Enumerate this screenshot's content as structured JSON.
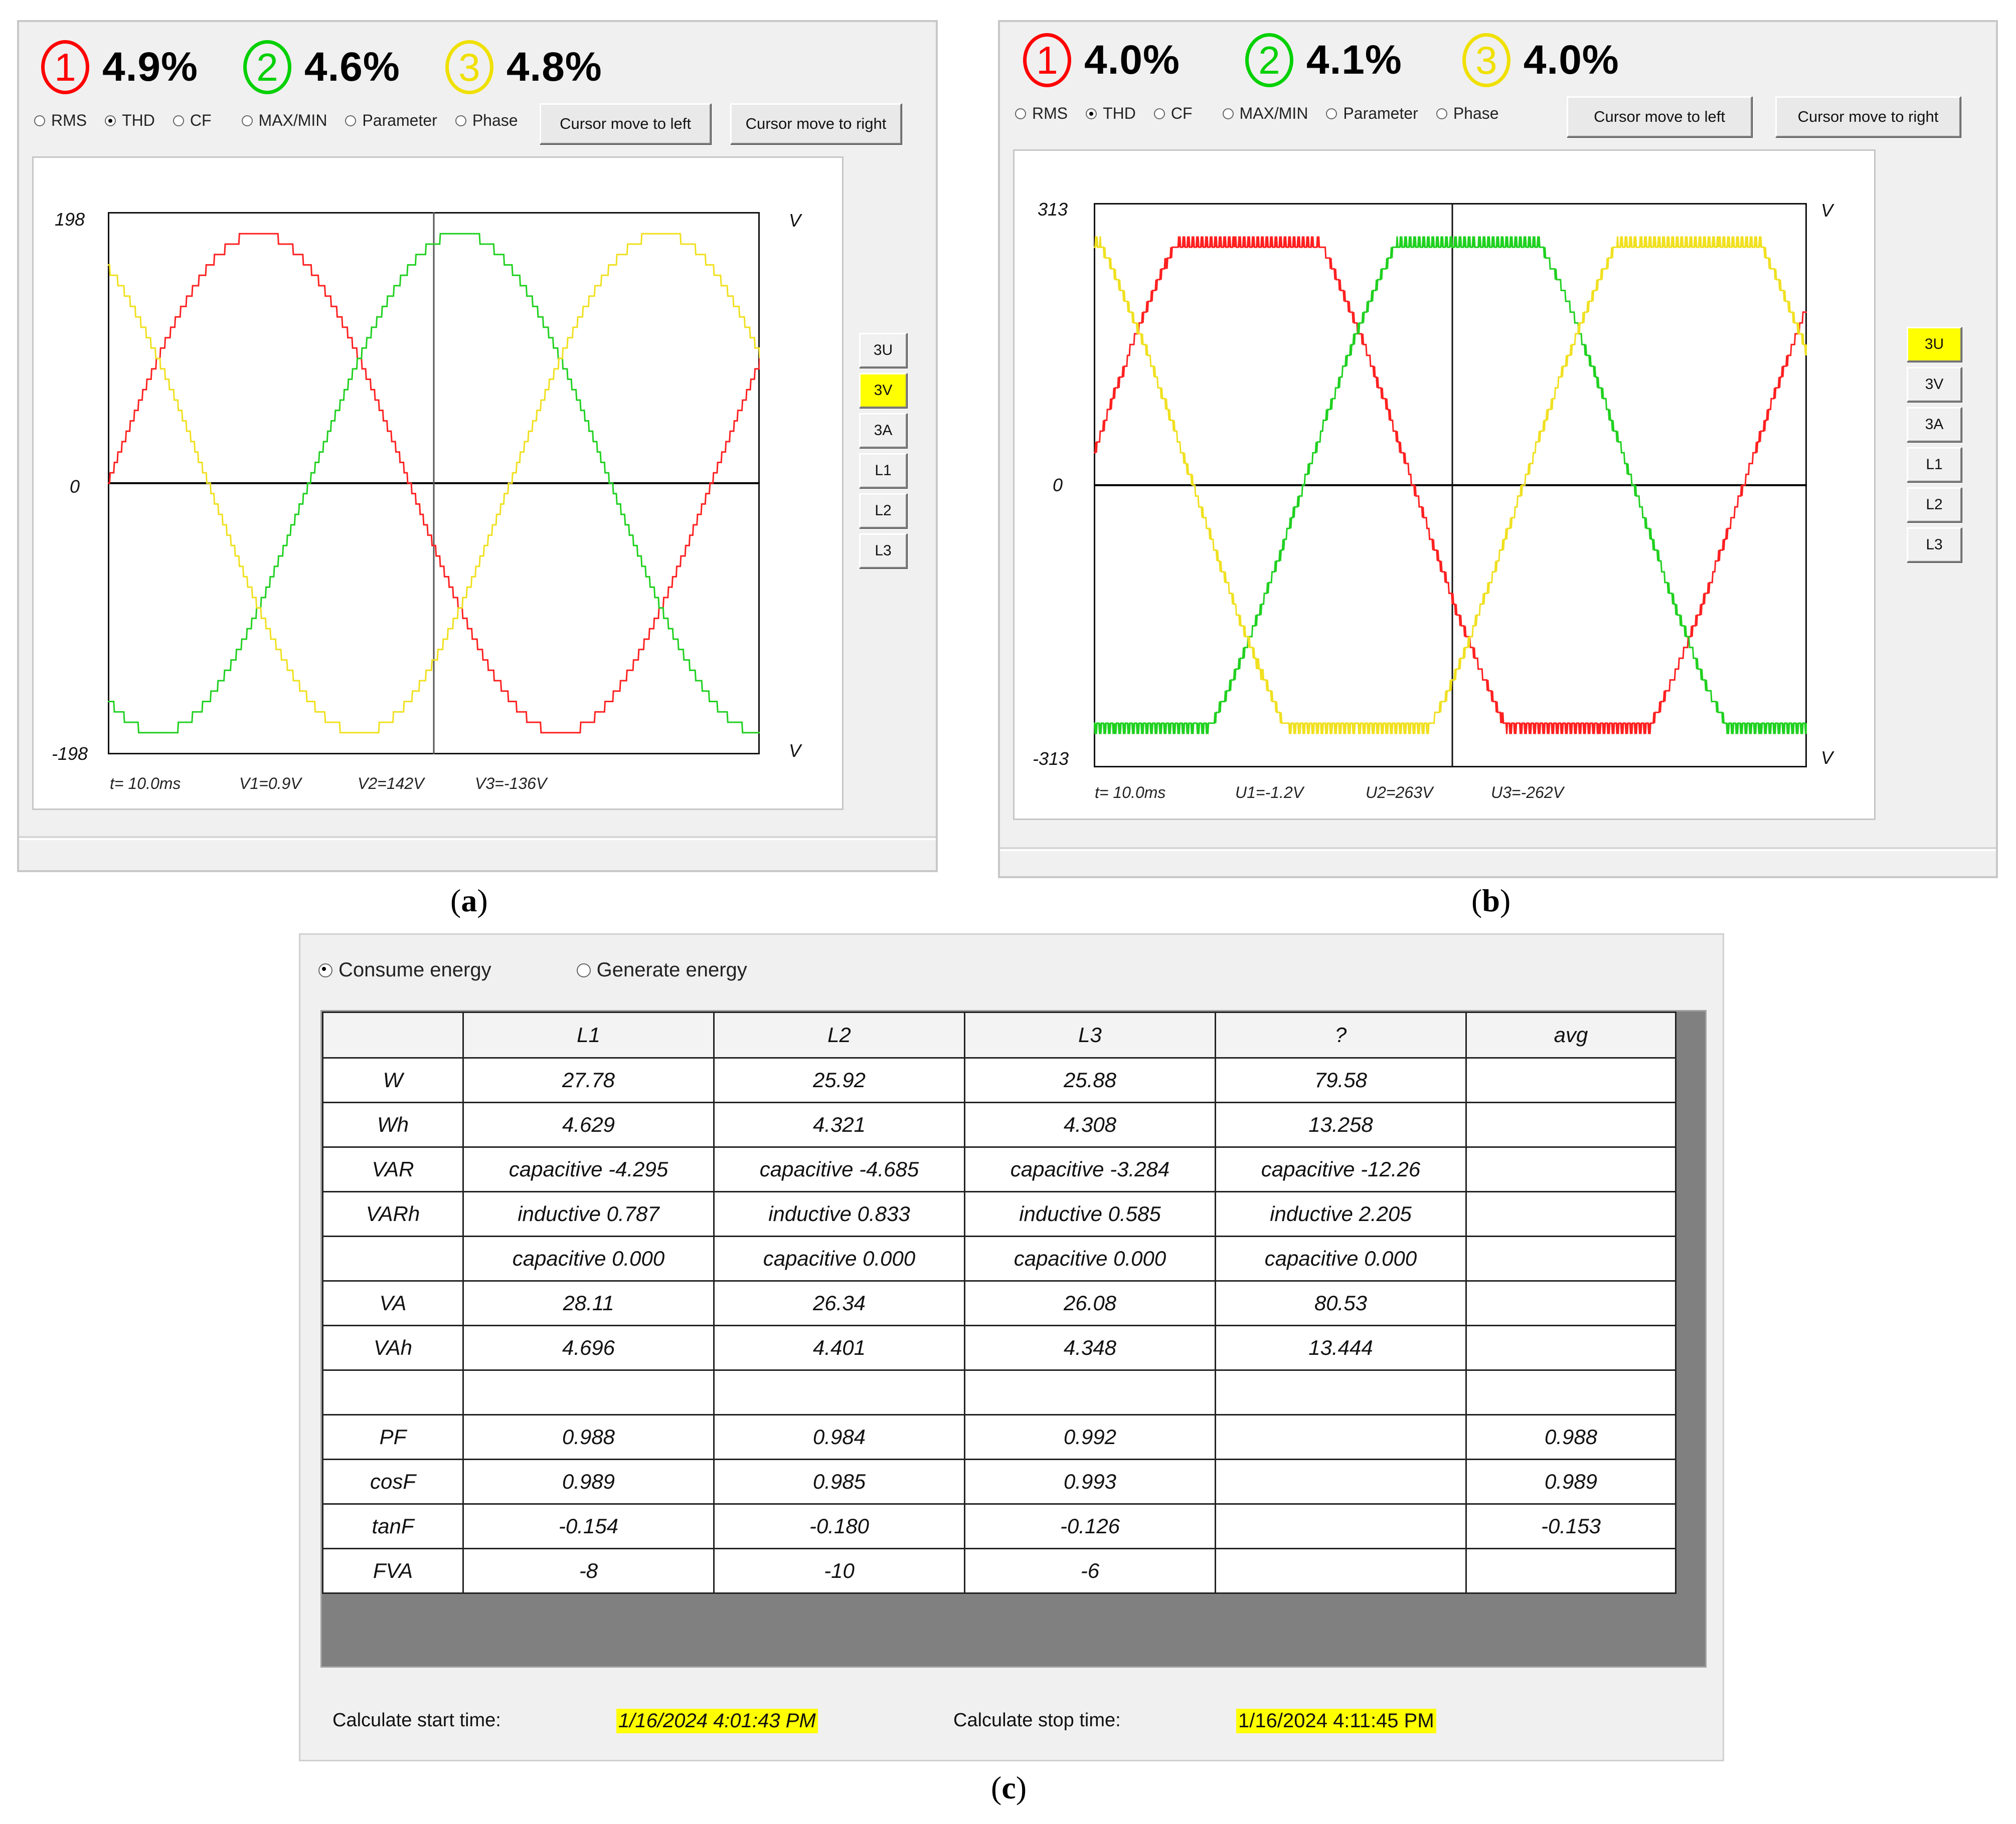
{
  "panel_a": {
    "thd": [
      {
        "num": "1",
        "value": "4.9%",
        "color": "#ff0000"
      },
      {
        "num": "2",
        "value": "4.6%",
        "color": "#00d000"
      },
      {
        "num": "3",
        "value": "4.8%",
        "color": "#f0e000"
      }
    ],
    "options": [
      {
        "label": "RMS",
        "selected": false
      },
      {
        "label": "THD",
        "selected": true
      },
      {
        "label": "CF",
        "selected": false
      },
      {
        "label": "MAX/MIN",
        "selected": false
      },
      {
        "label": "Parameter",
        "selected": false
      },
      {
        "label": "Phase",
        "selected": false
      }
    ],
    "btn_left": "Cursor move to left",
    "btn_right": "Cursor move to right",
    "y_top": "198",
    "y_zero": "0",
    "y_bottom": "-198",
    "unit": "V",
    "readouts": [
      "t= 10.0ms",
      "V1=0.9V",
      "V2=142V",
      "V3=-136V"
    ],
    "side_buttons": [
      "3U",
      "3V",
      "3A",
      "L1",
      "L2",
      "L3"
    ],
    "active_button": "3V",
    "caption": "a"
  },
  "panel_b": {
    "thd": [
      {
        "num": "1",
        "value": "4.0%",
        "color": "#ff0000"
      },
      {
        "num": "2",
        "value": "4.1%",
        "color": "#00d000"
      },
      {
        "num": "3",
        "value": "4.0%",
        "color": "#f0e000"
      }
    ],
    "options": [
      {
        "label": "RMS",
        "selected": false
      },
      {
        "label": "THD",
        "selected": true
      },
      {
        "label": "CF",
        "selected": false
      },
      {
        "label": "MAX/MIN",
        "selected": false
      },
      {
        "label": "Parameter",
        "selected": false
      },
      {
        "label": "Phase",
        "selected": false
      }
    ],
    "btn_left": "Cursor move to left",
    "btn_right": "Cursor move to right",
    "y_top": "313",
    "y_zero": "0",
    "y_bottom": "-313",
    "unit": "V",
    "readouts": [
      "t= 10.0ms",
      "U1=-1.2V",
      "U2=263V",
      "U3=-262V"
    ],
    "side_buttons": [
      "3U",
      "3V",
      "3A",
      "L1",
      "L2",
      "L3"
    ],
    "active_button": "3U",
    "caption": "b"
  },
  "panel_c": {
    "radio_consume": "Consume energy",
    "radio_generate": "Generate energy",
    "headers": [
      "",
      "L1",
      "L2",
      "L3",
      "?",
      "avg"
    ],
    "rows": [
      [
        "W",
        "27.78",
        "25.92",
        "25.88",
        "79.58",
        ""
      ],
      [
        "Wh",
        "4.629",
        "4.321",
        "4.308",
        "13.258",
        ""
      ],
      [
        "VAR",
        "capacitive -4.295",
        "capacitive -4.685",
        "capacitive -3.284",
        "capacitive -12.26",
        ""
      ],
      [
        "VARh",
        "inductive 0.787",
        "inductive 0.833",
        "inductive 0.585",
        "inductive 2.205",
        ""
      ],
      [
        "",
        "capacitive 0.000",
        "capacitive 0.000",
        "capacitive 0.000",
        "capacitive 0.000",
        ""
      ],
      [
        "VA",
        "28.11",
        "26.34",
        "26.08",
        "80.53",
        ""
      ],
      [
        "VAh",
        "4.696",
        "4.401",
        "4.348",
        "13.444",
        ""
      ],
      [
        "",
        "",
        "",
        "",
        "",
        ""
      ],
      [
        "PF",
        "0.988",
        "0.984",
        "0.992",
        "",
        "0.988"
      ],
      [
        "cosF",
        "0.989",
        "0.985",
        "0.993",
        "",
        "0.989"
      ],
      [
        "tanF",
        "-0.154",
        "-0.180",
        "-0.126",
        "",
        "-0.153"
      ],
      [
        "FVA",
        "-8",
        "-10",
        "-6",
        "",
        ""
      ]
    ],
    "start_label": "Calculate start time:",
    "start_value": "1/16/2024 4:01:43 PM",
    "stop_label": "Calculate stop time:",
    "stop_value": "1/16/2024 4:11:45 PM",
    "caption": "c"
  },
  "colors": {
    "phase1": "#ff0000",
    "phase2": "#00d000",
    "phase3": "#f0e000",
    "highlight": "#ffff00"
  }
}
